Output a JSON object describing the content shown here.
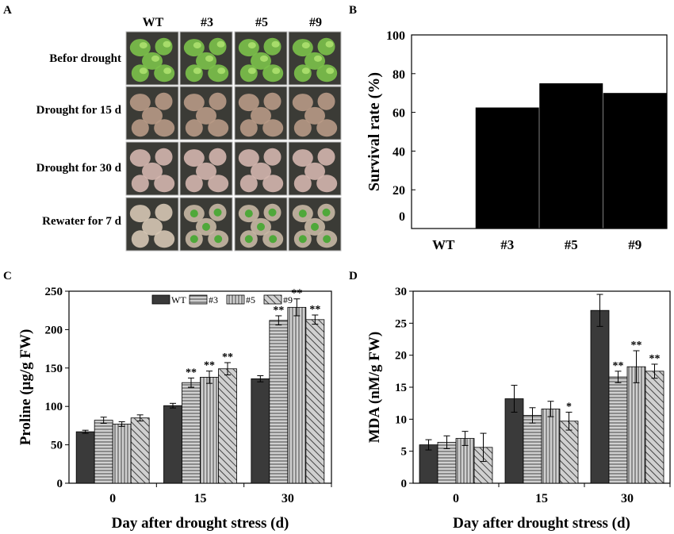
{
  "panel_labels": {
    "a": "A",
    "b": "B",
    "c": "C",
    "d": "D"
  },
  "photos": {
    "columns": [
      "WT",
      "#3",
      "#5",
      "#9"
    ],
    "rows": [
      "Befor drought",
      "Drought for 15 d",
      "Drought for 30 d",
      "Rewater for 7 d"
    ]
  },
  "colors": {
    "bar_wt": "#3a3a3a",
    "bar_black": "#000000",
    "hatch_bg": "#cfcfcf",
    "row_colors": [
      "#7cc24a",
      "#b89a86",
      "#d4b6ae",
      "#c8b8a4"
    ]
  },
  "chart_data": [
    {
      "id": "B",
      "type": "bar",
      "title": "",
      "xlabel": "",
      "ylabel": "Survival rate (%)",
      "categories": [
        "WT",
        "#3",
        "#5",
        "#9"
      ],
      "values": [
        0,
        62.5,
        75,
        70
      ],
      "ylim": [
        0,
        100
      ],
      "yticks": [
        "0",
        "20",
        "40",
        "60",
        "80",
        "100"
      ],
      "grid": false
    },
    {
      "id": "C",
      "type": "bar",
      "xlabel": "Day after drought stress (d)",
      "ylabel": "Proline (μg/g FW)",
      "categories": [
        "0",
        "15",
        "30"
      ],
      "ylim": [
        0,
        250
      ],
      "yticks": [
        "0",
        "50",
        "100",
        "150",
        "200",
        "250"
      ],
      "legend_position": "top",
      "series": [
        {
          "name": "WT",
          "pattern": "solid",
          "values": [
            67,
            101,
            136
          ],
          "errors": [
            2,
            3,
            4
          ],
          "sig": [
            "",
            "",
            ""
          ]
        },
        {
          "name": "#3",
          "pattern": "horizontal",
          "values": [
            82,
            131,
            212
          ],
          "errors": [
            4,
            6,
            6
          ],
          "sig": [
            "",
            "**",
            "**"
          ]
        },
        {
          "name": "#5",
          "pattern": "vertical",
          "values": [
            77,
            138,
            229
          ],
          "errors": [
            3,
            8,
            11
          ],
          "sig": [
            "",
            "**",
            "**"
          ]
        },
        {
          "name": "#9",
          "pattern": "diagonal",
          "values": [
            85,
            149,
            213
          ],
          "errors": [
            4,
            8,
            6
          ],
          "sig": [
            "",
            "**",
            "**"
          ]
        }
      ]
    },
    {
      "id": "D",
      "type": "bar",
      "xlabel": "Day after drought stress (d)",
      "ylabel": "MDA (nM/g FW)",
      "categories": [
        "0",
        "15",
        "30"
      ],
      "ylim": [
        0,
        30
      ],
      "yticks": [
        "0",
        "5",
        "10",
        "15",
        "20",
        "25",
        "30"
      ],
      "series": [
        {
          "name": "WT",
          "pattern": "solid",
          "values": [
            6,
            13.2,
            27
          ],
          "errors": [
            0.8,
            2.1,
            2.5
          ],
          "sig": [
            "",
            "",
            ""
          ]
        },
        {
          "name": "#3",
          "pattern": "horizontal",
          "values": [
            6.4,
            10.6,
            16.6
          ],
          "errors": [
            1.0,
            1.2,
            0.9
          ],
          "sig": [
            "",
            "",
            "**"
          ]
        },
        {
          "name": "#5",
          "pattern": "vertical",
          "values": [
            7,
            11.6,
            18.2
          ],
          "errors": [
            1.1,
            1.2,
            2.5
          ],
          "sig": [
            "",
            "",
            "**"
          ]
        },
        {
          "name": "#9",
          "pattern": "diagonal",
          "values": [
            5.6,
            9.7,
            17.5
          ],
          "errors": [
            2.2,
            1.4,
            1.1
          ],
          "sig": [
            "",
            "*",
            "**"
          ]
        }
      ]
    }
  ]
}
